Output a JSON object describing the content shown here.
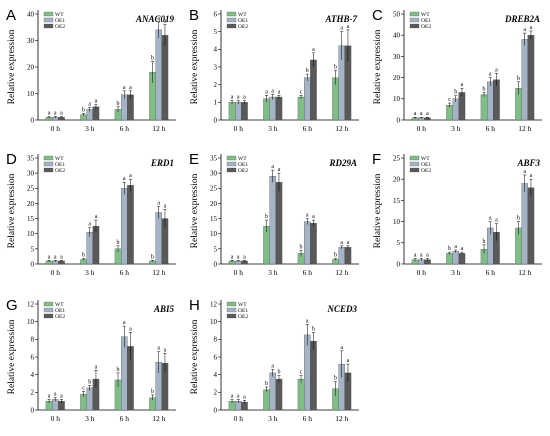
{
  "colors": {
    "WT": "#7fbf86",
    "OE1": "#a4b4c6",
    "OE2": "#595959"
  },
  "legend_labels": [
    "WT",
    "OE1",
    "OE2"
  ],
  "chart_data": [
    {
      "type": "bar",
      "panel": "A",
      "title": "ANAC019",
      "ylabel": "Relative expression",
      "categories": [
        "0 h",
        "3 h",
        "6 h",
        "12 h"
      ],
      "ylim": [
        0,
        40
      ],
      "yticks": [
        0,
        10,
        20,
        30,
        40
      ],
      "series": [
        {
          "name": "WT",
          "values": [
            1,
            2,
            4,
            18
          ],
          "errors": [
            0.3,
            0.5,
            1,
            4
          ]
        },
        {
          "name": "OE1",
          "values": [
            1,
            4,
            9.5,
            34
          ],
          "errors": [
            0.3,
            0.8,
            1.5,
            3
          ]
        },
        {
          "name": "OE2",
          "values": [
            1,
            5,
            9.5,
            32
          ],
          "errors": [
            0.3,
            0.8,
            1.5,
            4
          ]
        }
      ],
      "significance": [
        [
          "a",
          "a",
          "a"
        ],
        [
          "b",
          "a",
          "a"
        ],
        [
          "b",
          "a",
          "a"
        ],
        [
          "b",
          "a",
          "a"
        ]
      ]
    },
    {
      "type": "bar",
      "panel": "B",
      "title": "ATHB-7",
      "ylabel": "Relative expression",
      "categories": [
        "0 h",
        "3 h",
        "6 h",
        "12 h"
      ],
      "ylim": [
        0,
        6
      ],
      "yticks": [
        0,
        1,
        2,
        3,
        4,
        5,
        6
      ],
      "series": [
        {
          "name": "WT",
          "values": [
            1,
            1.2,
            1.3,
            2.4
          ],
          "errors": [
            0.1,
            0.2,
            0.1,
            0.4
          ]
        },
        {
          "name": "OE1",
          "values": [
            1,
            1.3,
            2.4,
            4.2
          ],
          "errors": [
            0.1,
            0.15,
            0.2,
            0.8
          ]
        },
        {
          "name": "OE2",
          "values": [
            1,
            1.3,
            3.4,
            4.2
          ],
          "errors": [
            0.1,
            0.1,
            0.4,
            0.9
          ]
        }
      ],
      "significance": [
        [
          "a",
          "a",
          "a"
        ],
        [
          "a",
          "a",
          "a"
        ],
        [
          "c",
          "b",
          "a"
        ],
        [
          "b",
          "a",
          "a"
        ]
      ]
    },
    {
      "type": "bar",
      "panel": "C",
      "title": "DREB2A",
      "ylabel": "Relative expression",
      "categories": [
        "0 h",
        "3 h",
        "6 h",
        "12 h"
      ],
      "ylim": [
        0,
        50
      ],
      "yticks": [
        0,
        10,
        20,
        30,
        40,
        50
      ],
      "series": [
        {
          "name": "WT",
          "values": [
            1,
            7,
            12,
            15
          ],
          "errors": [
            0.3,
            1,
            1,
            3
          ]
        },
        {
          "name": "OE1",
          "values": [
            1,
            10,
            18,
            38
          ],
          "errors": [
            0.3,
            1.5,
            2,
            3
          ]
        },
        {
          "name": "OE2",
          "values": [
            1,
            13,
            19,
            40
          ],
          "errors": [
            0.3,
            2,
            3,
            2
          ]
        }
      ],
      "significance": [
        [
          "a",
          "a",
          "a"
        ],
        [
          "c",
          "b",
          "a"
        ],
        [
          "b",
          "a",
          "a"
        ],
        [
          "b",
          "a",
          "a"
        ]
      ]
    },
    {
      "type": "bar",
      "panel": "D",
      "title": "ERD1",
      "ylabel": "Relative expression",
      "categories": [
        "0 h",
        "3 h",
        "6 h",
        "12 h"
      ],
      "ylim": [
        0,
        35
      ],
      "yticks": [
        0,
        5,
        10,
        15,
        20,
        25,
        30,
        35
      ],
      "series": [
        {
          "name": "WT",
          "values": [
            1,
            1.5,
            5,
            1
          ],
          "errors": [
            0.2,
            0.3,
            1,
            0.2
          ]
        },
        {
          "name": "OE1",
          "values": [
            1,
            10.5,
            25,
            17
          ],
          "errors": [
            0.2,
            1.5,
            2,
            2
          ]
        },
        {
          "name": "OE2",
          "values": [
            1,
            12.5,
            26,
            15
          ],
          "errors": [
            0.2,
            2,
            2,
            3
          ]
        }
      ],
      "significance": [
        [
          "a",
          "a",
          "a"
        ],
        [
          "b",
          "a",
          "a"
        ],
        [
          "b",
          "a",
          "a"
        ],
        [
          "b",
          "a",
          "a"
        ]
      ]
    },
    {
      "type": "bar",
      "panel": "E",
      "title": "RD29A",
      "ylabel": "Relative expression",
      "categories": [
        "0 h",
        "3 h",
        "6 h",
        "12 h"
      ],
      "ylim": [
        0,
        35
      ],
      "yticks": [
        0,
        5,
        10,
        15,
        20,
        25,
        30,
        35
      ],
      "series": [
        {
          "name": "WT",
          "values": [
            1,
            12.5,
            3.5,
            1.5
          ],
          "errors": [
            0.2,
            2,
            1,
            0.3
          ]
        },
        {
          "name": "OE1",
          "values": [
            1,
            29,
            14,
            5.5
          ],
          "errors": [
            0.2,
            2,
            1,
            0.5
          ]
        },
        {
          "name": "OE2",
          "values": [
            1,
            27,
            13.5,
            5.5
          ],
          "errors": [
            0.2,
            3,
            1,
            0.5
          ]
        }
      ],
      "significance": [
        [
          "a",
          "a",
          "a"
        ],
        [
          "b",
          "a",
          "a"
        ],
        [
          "b",
          "a",
          "a"
        ],
        [
          "b",
          "a",
          "a"
        ]
      ]
    },
    {
      "type": "bar",
      "panel": "F",
      "title": "ABF3",
      "ylabel": "Relative expression",
      "categories": [
        "0 h",
        "3 h",
        "6 h",
        "12 h"
      ],
      "ylim": [
        0,
        25
      ],
      "yticks": [
        0,
        5,
        10,
        15,
        20,
        25
      ],
      "series": [
        {
          "name": "WT",
          "values": [
            1,
            2.5,
            3.5,
            8.5
          ],
          "errors": [
            0.3,
            0.3,
            1,
            1.5
          ]
        },
        {
          "name": "OE1",
          "values": [
            1,
            3,
            8.5,
            19
          ],
          "errors": [
            0.3,
            0.3,
            1.5,
            2
          ]
        },
        {
          "name": "OE2",
          "values": [
            1,
            2.5,
            7.5,
            18
          ],
          "errors": [
            0.3,
            0.3,
            2,
            2
          ]
        }
      ],
      "significance": [
        [
          "a",
          "a",
          "a"
        ],
        [
          "b",
          "a",
          "a"
        ],
        [
          "b",
          "a",
          "a"
        ],
        [
          "b",
          "a",
          "a"
        ]
      ]
    },
    {
      "type": "bar",
      "panel": "G",
      "title": "ABI5",
      "ylabel": "Relative expression",
      "categories": [
        "0 h",
        "3 h",
        "6 h",
        "12 h"
      ],
      "ylim": [
        0,
        12
      ],
      "yticks": [
        0,
        2,
        4,
        6,
        8,
        10,
        12
      ],
      "series": [
        {
          "name": "WT",
          "values": [
            1,
            1.8,
            3.4,
            1.4
          ],
          "errors": [
            0.2,
            0.3,
            0.8,
            0.3
          ]
        },
        {
          "name": "OE1",
          "values": [
            1.2,
            2.5,
            8.3,
            5.4
          ],
          "errors": [
            0.2,
            0.3,
            1.2,
            1.2
          ]
        },
        {
          "name": "OE2",
          "values": [
            1,
            3.5,
            7.2,
            5.3
          ],
          "errors": [
            0.2,
            1,
            1.6,
            1.1
          ]
        }
      ],
      "significance": [
        [
          "a",
          "a",
          "a"
        ],
        [
          "c",
          "b",
          "a"
        ],
        [
          "b",
          "a",
          "a"
        ],
        [
          "b",
          "a",
          "a"
        ]
      ]
    },
    {
      "type": "bar",
      "panel": "H",
      "title": "NCED3",
      "ylabel": "Relative expression",
      "categories": [
        "0 h",
        "3 h",
        "6 h",
        "12 h"
      ],
      "ylim": [
        0,
        12
      ],
      "yticks": [
        0,
        2,
        4,
        6,
        8,
        10,
        12
      ],
      "series": [
        {
          "name": "WT",
          "values": [
            1,
            2.3,
            3.5,
            2.4
          ],
          "errors": [
            0.2,
            0.3,
            0.4,
            0.8
          ]
        },
        {
          "name": "OE1",
          "values": [
            1,
            4.2,
            8.5,
            5.2
          ],
          "errors": [
            0.2,
            0.4,
            1.2,
            1.5
          ]
        },
        {
          "name": "OE2",
          "values": [
            0.9,
            3.5,
            7.8,
            4.2
          ],
          "errors": [
            0.2,
            0.4,
            1,
            1
          ]
        }
      ],
      "significance": [
        [
          "a",
          "a",
          "a"
        ],
        [
          "b",
          "a",
          "b"
        ],
        [
          "c",
          "a",
          "b"
        ],
        [
          "b",
          "a",
          "a"
        ]
      ]
    }
  ]
}
